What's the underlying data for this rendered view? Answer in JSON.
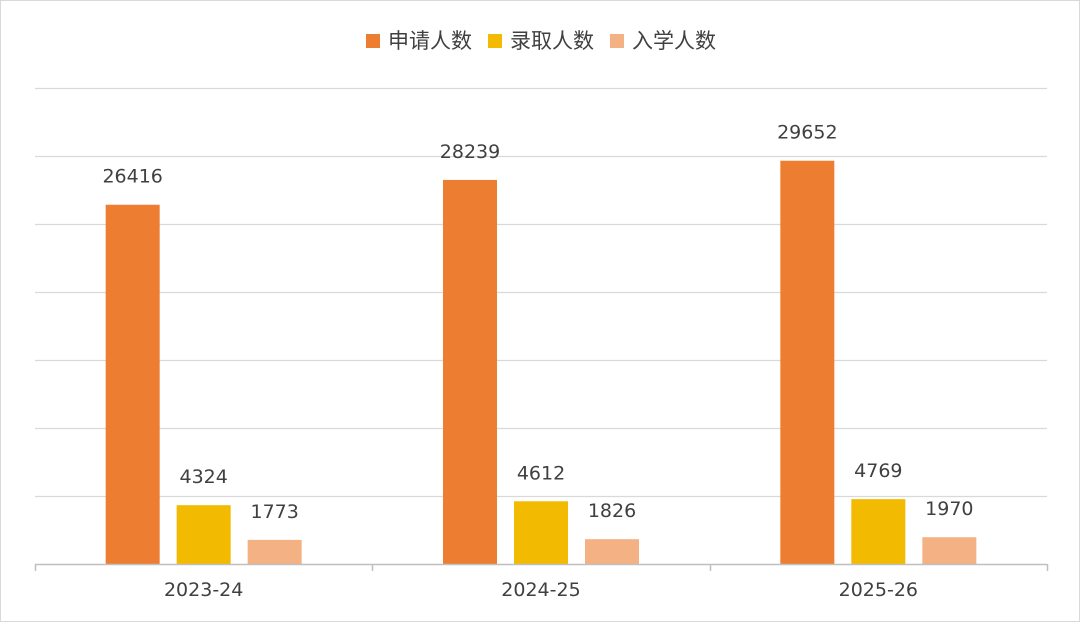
{
  "chart_data": {
    "type": "bar",
    "categories": [
      "2023-24",
      "2024-25",
      "2025-26"
    ],
    "series": [
      {
        "name": "申请人数",
        "values": [
          26416,
          28239,
          29652
        ],
        "color": "#ED7D31"
      },
      {
        "name": "录取人数",
        "values": [
          4324,
          4612,
          4769
        ],
        "color": "#F2BA00"
      },
      {
        "name": "入学人数",
        "values": [
          1773,
          1826,
          1970
        ],
        "color": "#F4B183"
      }
    ],
    "title": "",
    "xlabel": "",
    "ylabel": "",
    "ylim": [
      0,
      35000
    ],
    "grid": true,
    "legend_position": "top-center",
    "show_y_axis": false,
    "data_labels": true
  }
}
